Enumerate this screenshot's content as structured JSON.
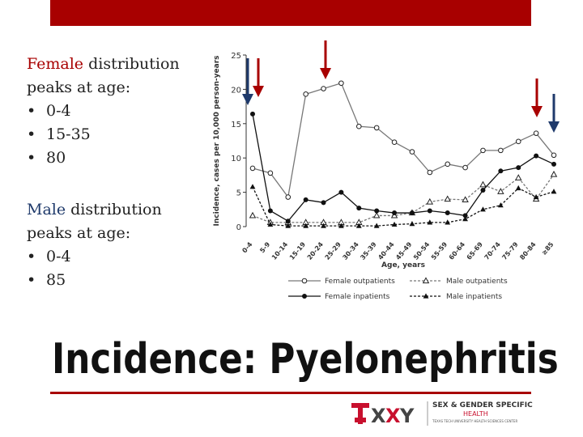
{
  "title": "Incidence: Pyelonephritis",
  "female_block": {
    "heading_accent": "Female",
    "heading_rest": " distribution",
    "heading_line2": "peaks at age:",
    "items": [
      "0-4",
      "15-35",
      "80"
    ]
  },
  "male_block": {
    "heading_accent": "Male",
    "heading_rest": " distribution",
    "heading_line2": "peaks at age:",
    "items": [
      "0-4",
      "85"
    ]
  },
  "logo": {
    "line1": "SEX & GENDER SPECIFIC",
    "line2": "HEALTH",
    "line3": "TEXAS TECH UNIVERSITY HEALTH SCIENCES CENTER"
  },
  "colors": {
    "accent": "#a80000",
    "navy": "#1f3a6b"
  },
  "chart_data": {
    "type": "line",
    "title": "",
    "xlabel": "Age, years",
    "ylabel": "Incidence, cases per 10,000 person-years",
    "ylim": [
      0,
      25
    ],
    "yticks": [
      0,
      5,
      10,
      15,
      20,
      25
    ],
    "grid": false,
    "legend_position": "bottom",
    "categories": [
      "0-4",
      "5-9",
      "10-14",
      "15-19",
      "20-24",
      "25-29",
      "30-34",
      "35-39",
      "40-44",
      "45-49",
      "50-54",
      "55-59",
      "60-64",
      "65-69",
      "70-74",
      "75-79",
      "80-84",
      "≥85"
    ],
    "series": [
      {
        "name": "Female outpatients",
        "marker": "open-circle",
        "values": [
          8.5,
          7.8,
          4.3,
          19.3,
          20.1,
          20.9,
          14.6,
          14.4,
          12.3,
          10.9,
          7.9,
          9.1,
          8.6,
          11.1,
          11.1,
          12.4,
          13.6,
          10.4
        ]
      },
      {
        "name": "Male outpatients",
        "marker": "open-triangle",
        "values": [
          1.6,
          0.6,
          0.6,
          0.6,
          0.6,
          0.6,
          0.6,
          1.6,
          1.6,
          2.0,
          3.6,
          4.0,
          3.9,
          6.1,
          5.1,
          7.1,
          4.0,
          7.6
        ]
      },
      {
        "name": "Female inpatients",
        "marker": "filled-circle",
        "values": [
          16.4,
          2.3,
          0.8,
          3.9,
          3.5,
          5.0,
          2.7,
          2.3,
          2.0,
          2.0,
          2.3,
          2.0,
          1.6,
          5.3,
          8.1,
          8.6,
          10.3,
          9.1
        ]
      },
      {
        "name": "Male inpatients",
        "marker": "filled-triangle",
        "values": [
          5.8,
          0.3,
          0.1,
          0.1,
          0.1,
          0.1,
          0.1,
          0.1,
          0.3,
          0.4,
          0.6,
          0.6,
          1.1,
          2.5,
          3.1,
          5.6,
          4.3,
          5.1
        ]
      }
    ]
  }
}
